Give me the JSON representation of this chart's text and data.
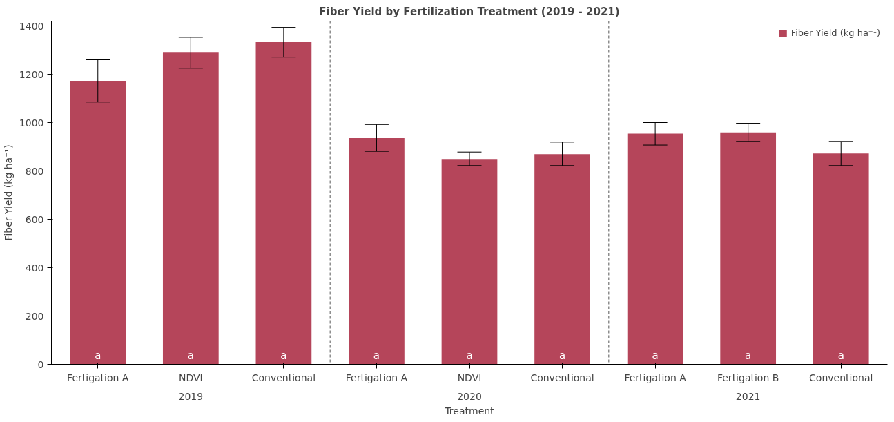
{
  "chart_data": {
    "type": "bar",
    "title": "Fiber Yield by Fertilization Treatment (2019 - 2021)",
    "xlabel": "Treatment",
    "ylabel": "Fiber Yield (kg ha⁻¹)",
    "categories": [
      "Fertigation A",
      "NDVI",
      "Conventional",
      "Fertigation A",
      "NDVI",
      "Conventional",
      "Fertigation A",
      "Fertigation B",
      "Conventional"
    ],
    "series": [
      {
        "name": "Fiber Yield (kg ha⁻¹)",
        "color": "#b5455a",
        "values": [
          1172,
          1289,
          1333,
          936,
          849,
          869,
          954,
          959,
          872
        ],
        "errors": [
          [
            1085,
            1260
          ],
          [
            1225,
            1353
          ],
          [
            1271,
            1394
          ],
          [
            881,
            992
          ],
          [
            822,
            878
          ],
          [
            822,
            919
          ],
          [
            907,
            1000
          ],
          [
            922,
            997
          ],
          [
            822,
            922
          ]
        ]
      }
    ],
    "annotations": [
      "a",
      "a",
      "a",
      "a",
      "a",
      "a",
      "a",
      "a",
      "a",
      "2019",
      "2020",
      "2021"
    ],
    "ylim": [
      0,
      1420
    ],
    "yticks": [
      0,
      200,
      400,
      600,
      800,
      1000,
      1200,
      1400
    ],
    "grid": false,
    "legend": "top right"
  }
}
